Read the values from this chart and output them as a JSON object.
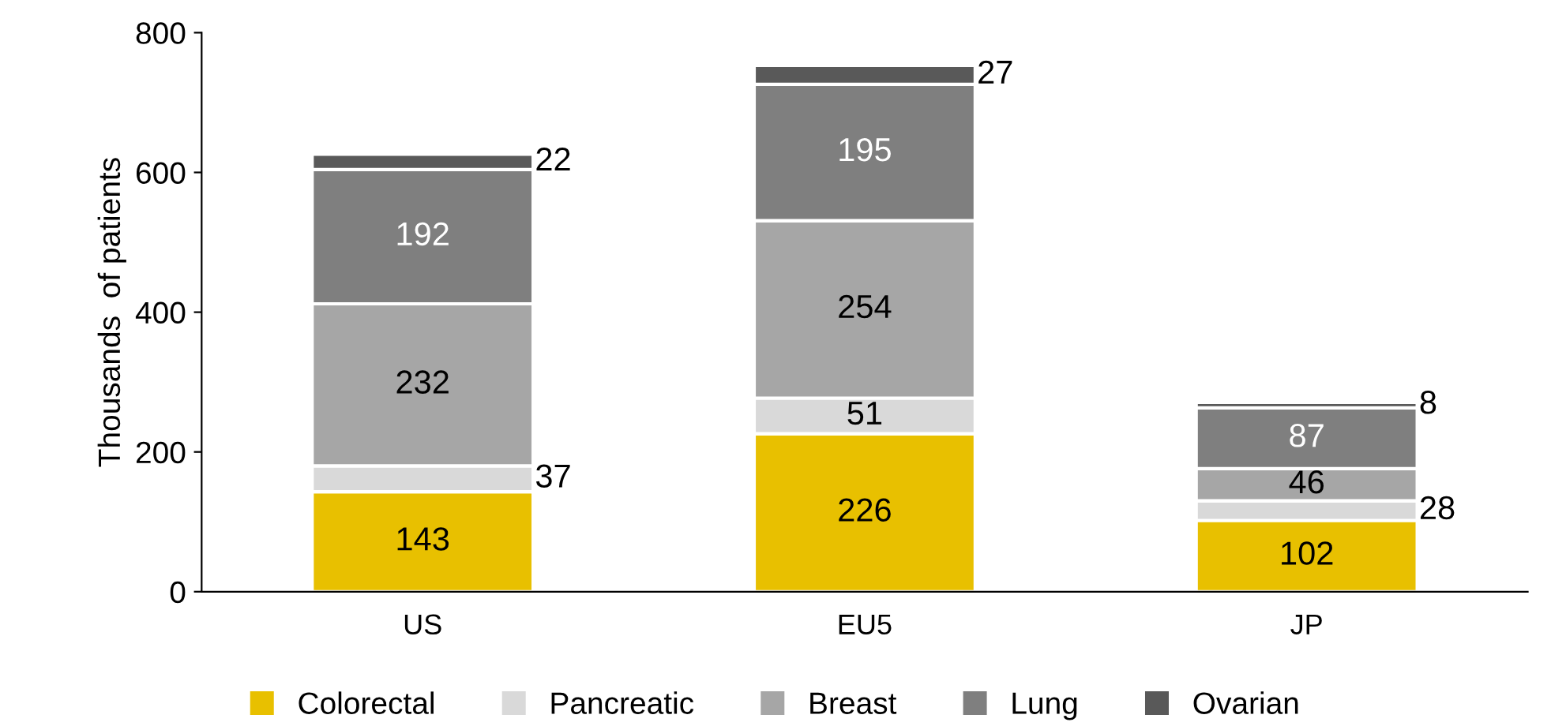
{
  "chart_data": {
    "type": "bar",
    "stacked": true,
    "ylabel": "Thousands  of patients",
    "categories": [
      "US",
      "EU5",
      "JP"
    ],
    "series": [
      {
        "name": "Colorectal",
        "color": "#e8c000",
        "values": [
          143,
          226,
          102
        ]
      },
      {
        "name": "Pancreatic",
        "color": "#d9d9d9",
        "values": [
          37,
          51,
          28
        ]
      },
      {
        "name": "Breast",
        "color": "#a6a6a6",
        "values": [
          232,
          254,
          46
        ]
      },
      {
        "name": "Lung",
        "color": "#7f7f7f",
        "values": [
          192,
          195,
          87
        ]
      },
      {
        "name": "Ovarian",
        "color": "#595959",
        "values": [
          22,
          27,
          8
        ]
      }
    ],
    "ylim": [
      0,
      800
    ],
    "yticks": [
      0,
      200,
      400,
      600,
      800
    ],
    "data_labels": true,
    "grid": false,
    "legend": "bottom"
  }
}
